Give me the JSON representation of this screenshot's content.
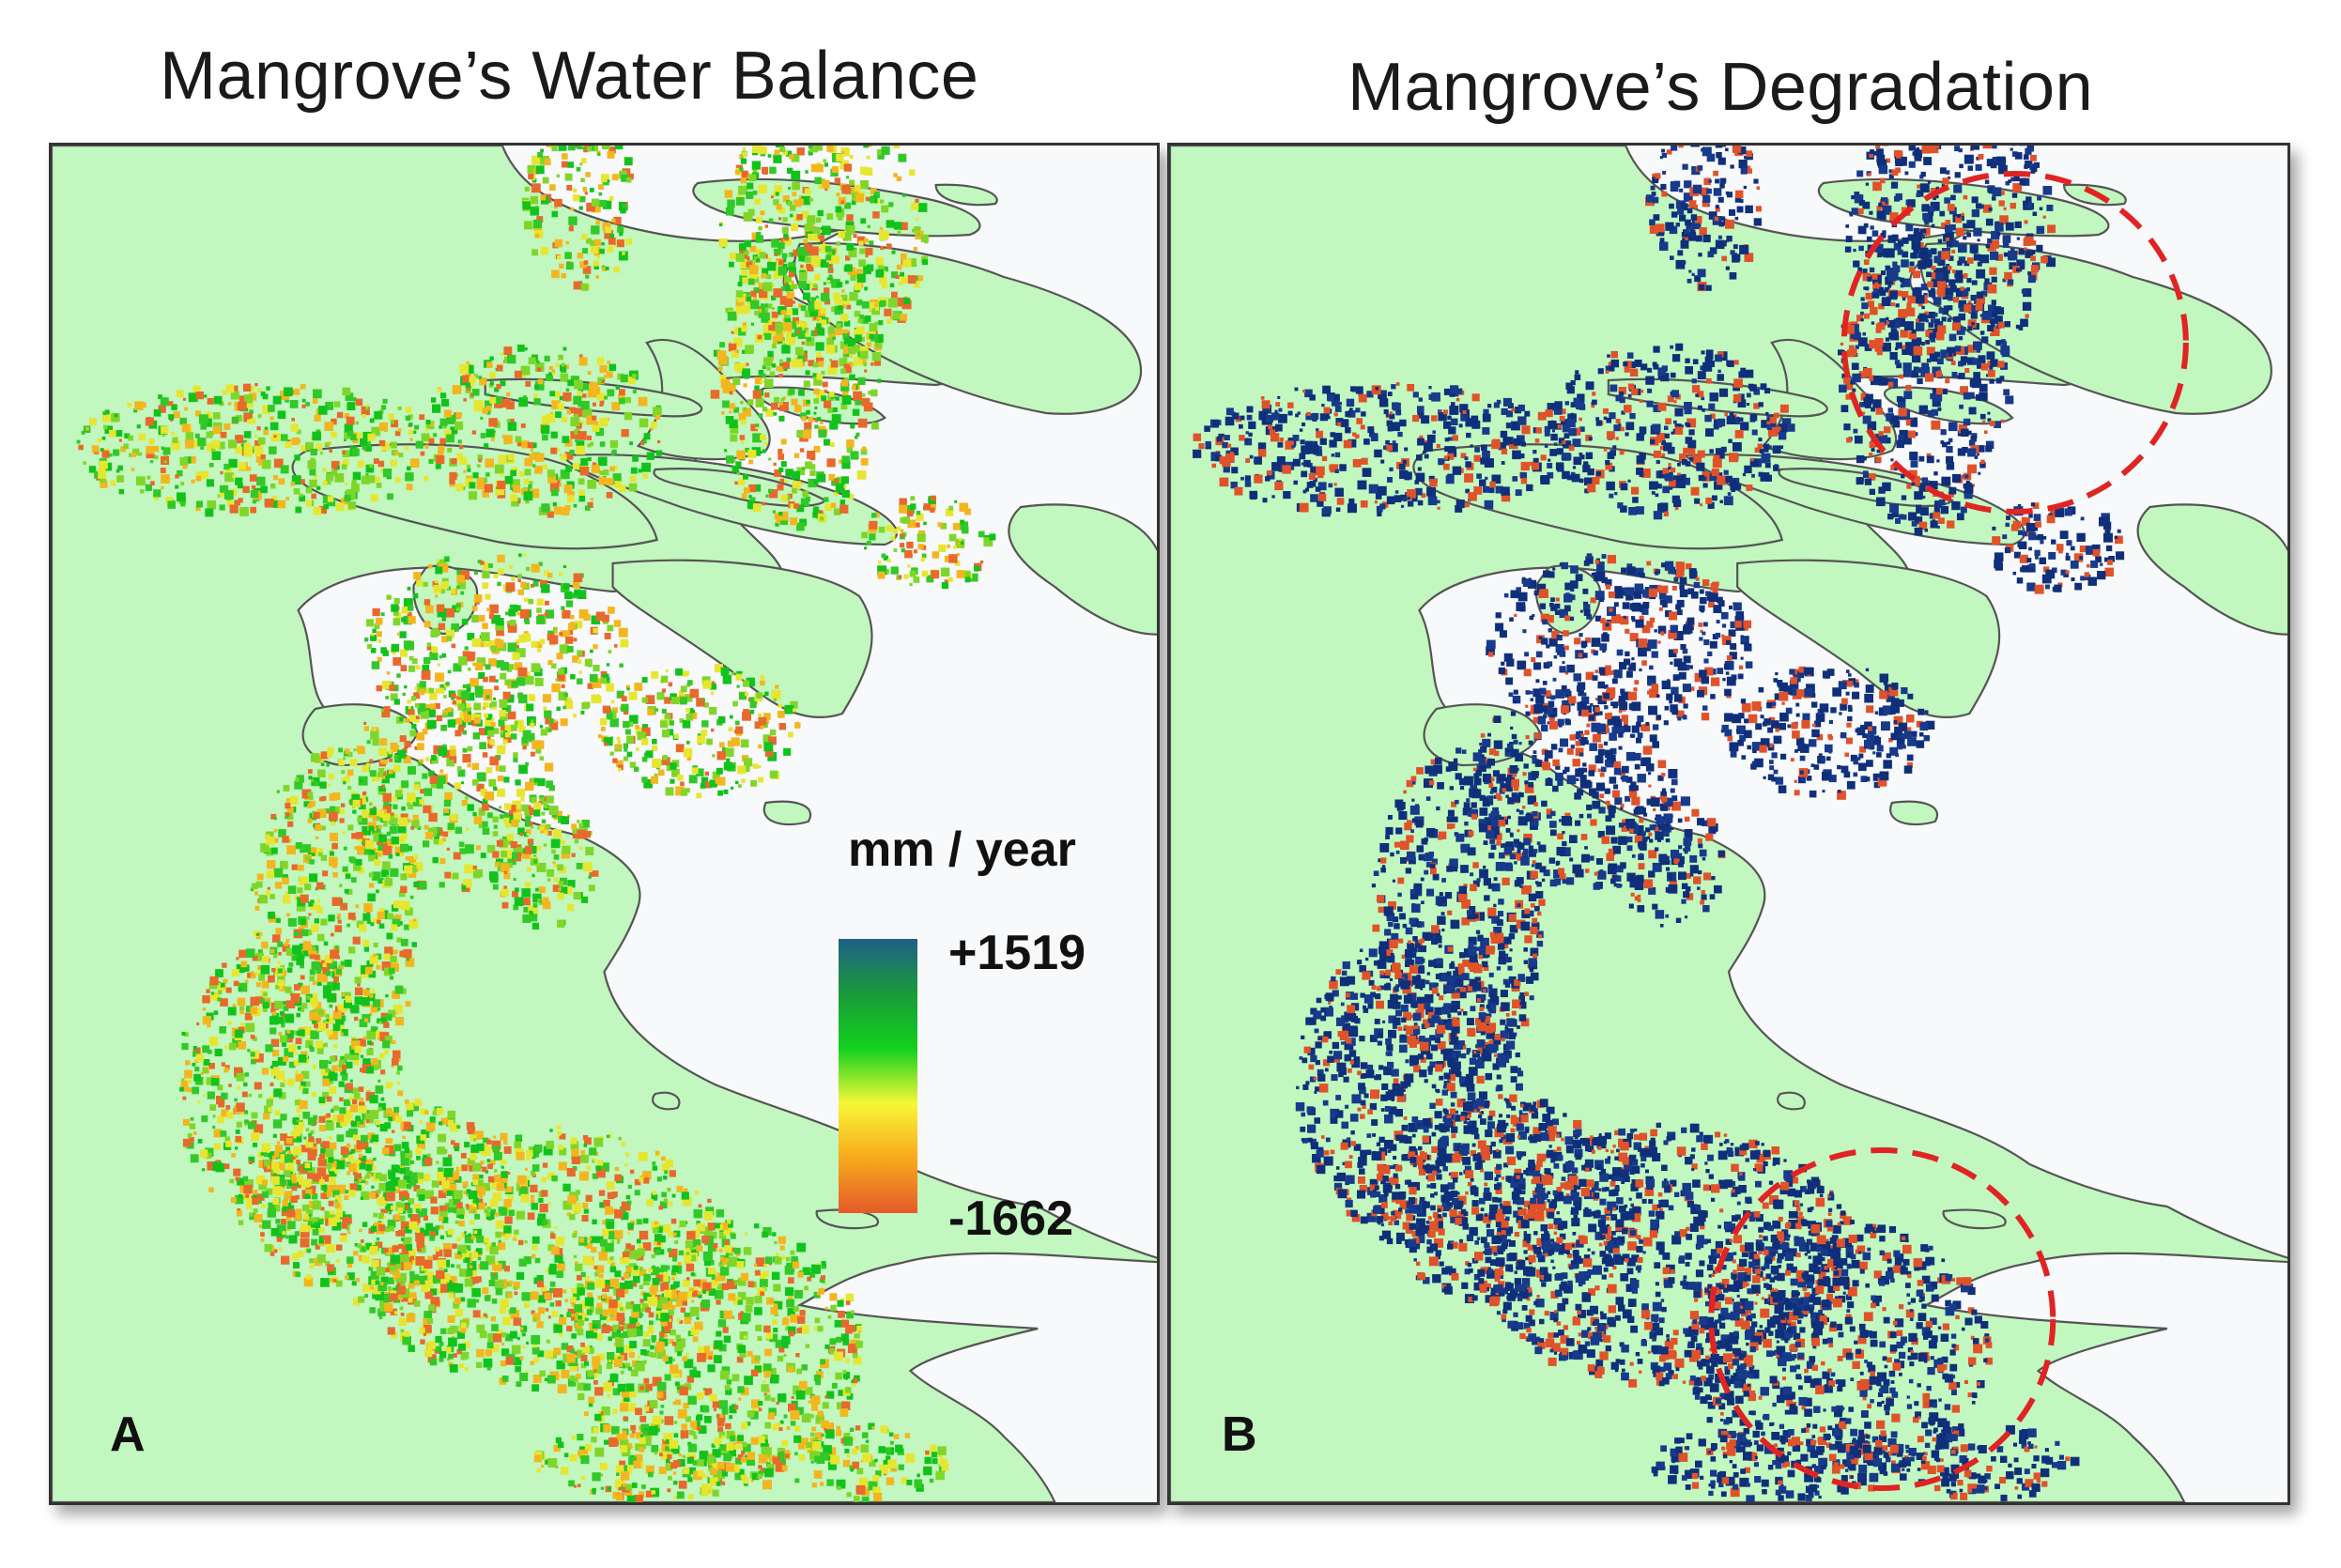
{
  "panels": [
    {
      "title": "Mangrove’s Water Balance",
      "label": "A",
      "legend": {
        "unit": "mm / year",
        "max_label": "+1519",
        "min_label": "-1662",
        "gradient_colors": [
          "#1f5f88",
          "#1a9a3a",
          "#12d11c",
          "#f7f738",
          "#f7a91c",
          "#e55a2a"
        ]
      },
      "pixel_palette": [
        "#12c21c",
        "#32c828",
        "#7fd62a",
        "#e6e631",
        "#f3b61f",
        "#e8692c"
      ]
    },
    {
      "title": "Mangrove’s Degradation",
      "label": "B",
      "pixel_palette": [
        "#0f2f7a",
        "#0f2f7a",
        "#173a8a",
        "#e0522a"
      ],
      "highlight_color": "#e02424"
    }
  ],
  "colors": {
    "land": "#c2f7bf",
    "water": "#f8f9fb",
    "coastline": "#555555"
  }
}
